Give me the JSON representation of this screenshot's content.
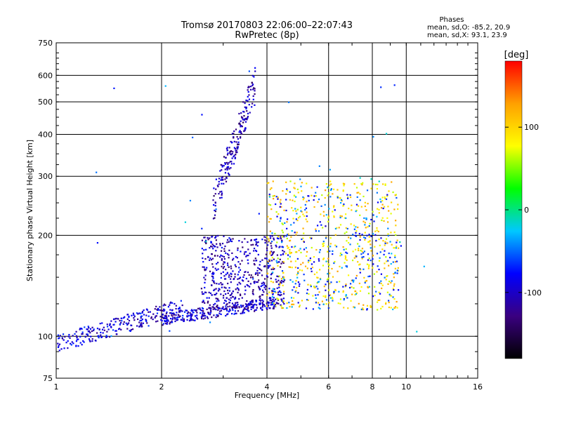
{
  "header": {
    "title": "Tromsø 20170803 22:06:00–22:07:43",
    "subtitle": "RwPretec (8p)"
  },
  "phases_box": {
    "heading": "Phases",
    "line_o": "mean, sd,O: -85.2, 20.9",
    "line_x": "mean, sd,X:  93.1, 23.9"
  },
  "chart_data": {
    "type": "scatter",
    "title": "Tromsø 20170803 22:06:00–22:07:43",
    "subtitle": "RwPretec (8p)",
    "xlabel": "Frequency [MHz]",
    "ylabel": "Stationary phase Virtual Height [km]",
    "x_scale": "log",
    "y_scale": "log",
    "xlim": [
      1,
      16
    ],
    "ylim": [
      75,
      750
    ],
    "x_ticks": [
      1,
      2,
      4,
      6,
      8,
      10,
      16
    ],
    "y_ticks": [
      75,
      100,
      200,
      300,
      400,
      500,
      600,
      750
    ],
    "grid": true,
    "colorbar": {
      "label": "[deg]",
      "range": [
        -180,
        180
      ],
      "ticks": [
        100,
        0,
        -100
      ],
      "colors": [
        "#000000",
        "#3a0080",
        "#0000ff",
        "#00c8ff",
        "#00ff00",
        "#ffff00",
        "#ffa000",
        "#ff0000"
      ]
    },
    "clusters": [
      {
        "name": "low_E_trace",
        "phase": -95,
        "x_range": [
          1.0,
          2.3
        ],
        "y_range": [
          88,
          125
        ],
        "count": 260
      },
      {
        "name": "E_to_F_ramp",
        "phase": -100,
        "x_range": [
          2.0,
          4.2
        ],
        "y_range": [
          110,
          135
        ],
        "count": 280
      },
      {
        "name": "F_layer_O_blob",
        "phase": -105,
        "x_range": [
          2.6,
          4.5
        ],
        "y_range": [
          120,
          200
        ],
        "count": 520
      },
      {
        "name": "cusp_spike",
        "phase": -110,
        "x_range": [
          2.8,
          3.7
        ],
        "y_range": [
          240,
          570
        ],
        "count": 200
      },
      {
        "name": "X_mode_spread",
        "phase": 95,
        "x_range": [
          4.0,
          9.5
        ],
        "y_range": [
          120,
          290
        ],
        "count": 520
      },
      {
        "name": "mixed_spread",
        "phase": -60,
        "x_range": [
          4.0,
          9.5
        ],
        "y_range": [
          120,
          280
        ],
        "count": 300
      },
      {
        "name": "sparse_high",
        "phase": -40,
        "x_range": [
          1.3,
          12.5
        ],
        "y_range": [
          95,
          650
        ],
        "count": 40
      }
    ]
  }
}
